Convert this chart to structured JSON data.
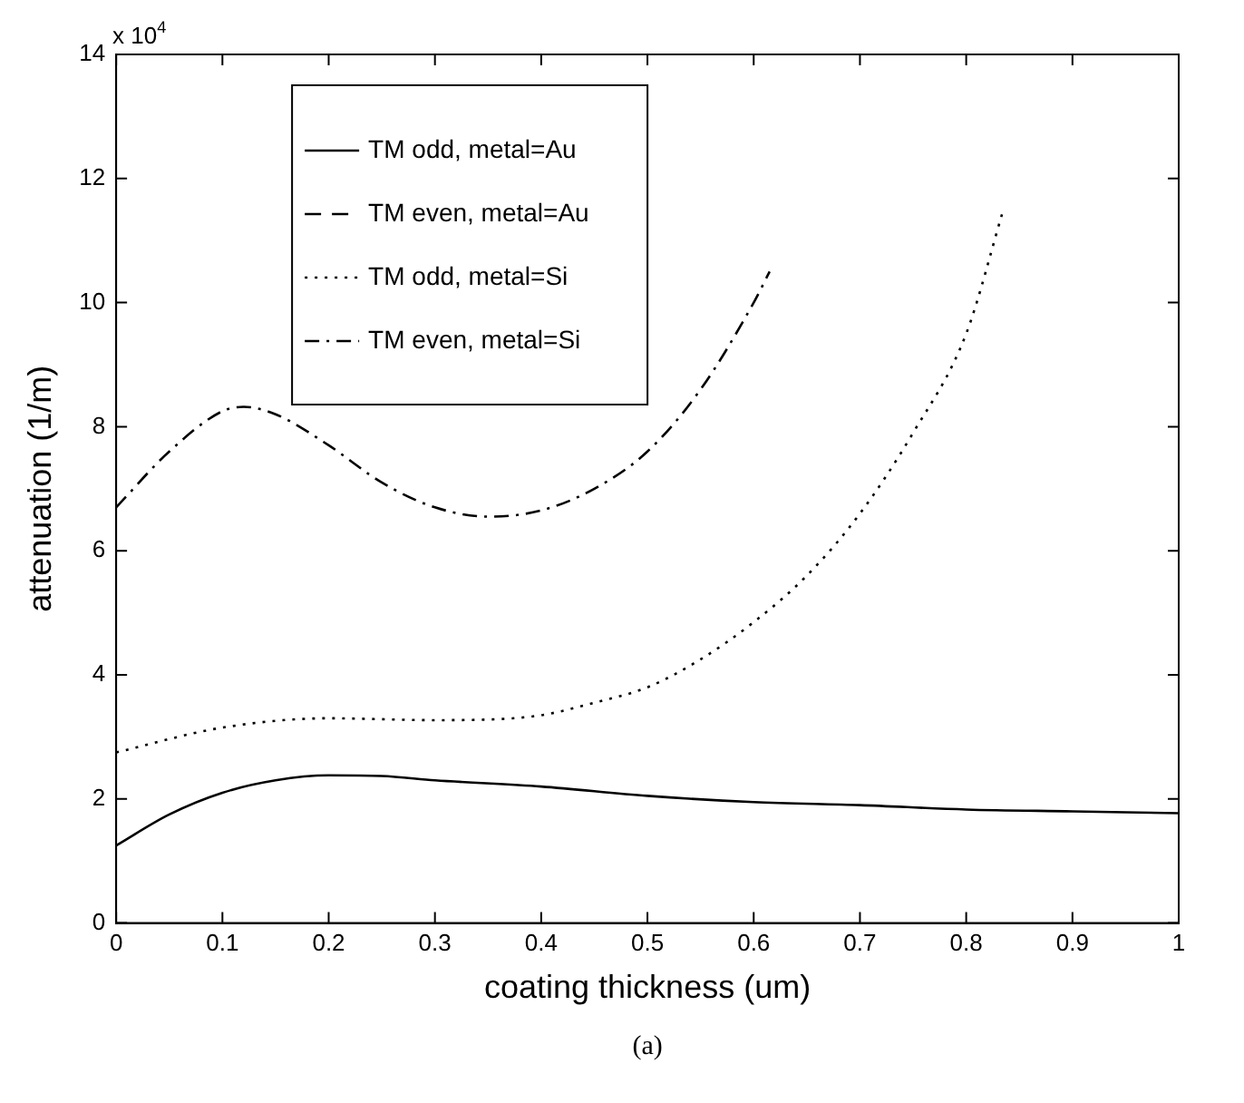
{
  "chart_data": {
    "type": "line",
    "xlabel": "coating thickness (um)",
    "ylabel": "attenuation (1/m)",
    "xlim": [
      0,
      1
    ],
    "xticks": [
      0,
      0.1,
      0.2,
      0.3,
      0.4,
      0.5,
      0.6,
      0.7,
      0.8,
      0.9,
      1
    ],
    "ylim": [
      0,
      14
    ],
    "yticks": [
      0,
      2,
      4,
      6,
      8,
      10,
      12,
      14
    ],
    "grid": false,
    "legend": "top left",
    "marker": "none",
    "annotations": [
      "x 10$^{4}$",
      "(a)"
    ],
    "series": [
      {
        "name": "TM odd, metal=Au",
        "color": "#000000",
        "line_style": "solid",
        "x": [
          0,
          0.05,
          0.1,
          0.15,
          0.2,
          0.25,
          0.3,
          0.4,
          0.5,
          0.6,
          0.7,
          0.8,
          0.9,
          1.0
        ],
        "values": [
          1.25,
          1.75,
          2.1,
          2.3,
          2.38,
          2.37,
          2.3,
          2.2,
          2.05,
          1.95,
          1.9,
          1.83,
          1.8,
          1.77
        ]
      },
      {
        "name": "TM even, metal=Au",
        "color": "#000000",
        "line_style": "dashed"
      },
      {
        "name": "TM odd, metal=Si",
        "color": "#000000",
        "line_style": "dotted",
        "x": [
          0,
          0.1,
          0.2,
          0.3,
          0.35,
          0.4,
          0.45,
          0.5,
          0.55,
          0.6,
          0.65,
          0.7,
          0.75,
          0.8,
          0.835
        ],
        "values": [
          2.75,
          3.15,
          3.3,
          3.27,
          3.28,
          3.35,
          3.55,
          3.8,
          4.25,
          4.85,
          5.6,
          6.6,
          7.9,
          9.5,
          11.5
        ]
      },
      {
        "name": "TM even, metal=Si",
        "color": "#000000",
        "line_style": "dashdot",
        "x": [
          0,
          0.05,
          0.1,
          0.12,
          0.15,
          0.2,
          0.25,
          0.3,
          0.35,
          0.4,
          0.45,
          0.5,
          0.55,
          0.6,
          0.615
        ],
        "values": [
          6.7,
          7.6,
          8.25,
          8.32,
          8.2,
          7.7,
          7.1,
          6.7,
          6.55,
          6.65,
          7.0,
          7.6,
          8.6,
          10.0,
          10.5
        ]
      }
    ]
  }
}
